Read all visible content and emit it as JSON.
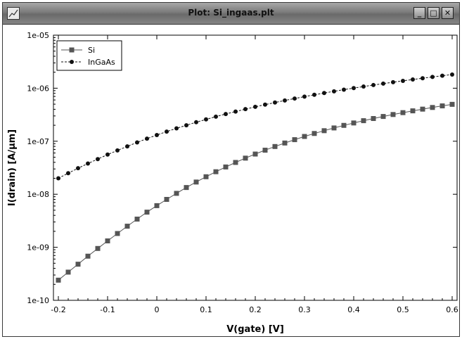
{
  "window": {
    "title": "Plot: Si_ingaas.plt",
    "buttons": {
      "minimize": "_",
      "maximize": "□",
      "close": "✕"
    },
    "icon": "plot-app-icon"
  },
  "chart_data": {
    "type": "line",
    "xlabel": "V(gate) [V]",
    "ylabel": "I(drain) [A/µm]",
    "yscale": "log",
    "xlim": [
      -0.21,
      0.61
    ],
    "ylim": [
      1e-10,
      1e-05
    ],
    "xticks": [
      -0.2,
      -0.1,
      0,
      0.1,
      0.2,
      0.3,
      0.4,
      0.5,
      0.6
    ],
    "xtick_labels": [
      "-0.2",
      "-0.1",
      "0",
      "0.1",
      "0.2",
      "0.3",
      "0.4",
      "0.5",
      "0.6"
    ],
    "yticks": [
      1e-10,
      1e-09,
      1e-08,
      1e-07,
      1e-06,
      1e-05
    ],
    "ytick_labels": [
      "1e-10",
      "1e-09",
      "1e-08",
      "1e-07",
      "1e-06",
      "1e-05"
    ],
    "grid": false,
    "legend_position": "top-left",
    "x": [
      -0.2,
      -0.18,
      -0.16,
      -0.14,
      -0.12,
      -0.1,
      -0.08,
      -0.06,
      -0.04,
      -0.02,
      0,
      0.02,
      0.04,
      0.06,
      0.08,
      0.1,
      0.12,
      0.14,
      0.16,
      0.18,
      0.2,
      0.22,
      0.24,
      0.26,
      0.28,
      0.3,
      0.32,
      0.34,
      0.36,
      0.38,
      0.4,
      0.42,
      0.44,
      0.46,
      0.48,
      0.5,
      0.52,
      0.54,
      0.56,
      0.58,
      0.6
    ],
    "series": [
      {
        "name": "Si",
        "color": "#555555",
        "marker": "square",
        "line": "solid",
        "values": [
          2.4e-10,
          3.4e-10,
          4.8e-10,
          6.8e-10,
          9.5e-10,
          1.32e-09,
          1.82e-09,
          2.5e-09,
          3.4e-09,
          4.6e-09,
          6.1e-09,
          8e-09,
          1.04e-08,
          1.34e-08,
          1.7e-08,
          2.14e-08,
          2.66e-08,
          3.27e-08,
          3.98e-08,
          4.8e-08,
          5.73e-08,
          6.78e-08,
          7.95e-08,
          9.25e-08,
          1.07e-07,
          1.23e-07,
          1.4e-07,
          1.58e-07,
          1.78e-07,
          1.99e-07,
          2.21e-07,
          2.44e-07,
          2.68e-07,
          2.93e-07,
          3.19e-07,
          3.46e-07,
          3.74e-07,
          4.03e-07,
          4.33e-07,
          4.64e-07,
          4.96e-07
        ]
      },
      {
        "name": "InGaAs",
        "color": "#111111",
        "marker": "circle",
        "line": "dashed",
        "values": [
          2e-08,
          2.5e-08,
          3.1e-08,
          3.8e-08,
          4.6e-08,
          5.6e-08,
          6.7e-08,
          8e-08,
          9.5e-08,
          1.12e-07,
          1.31e-07,
          1.52e-07,
          1.75e-07,
          2e-07,
          2.28e-07,
          2.58e-07,
          2.91e-07,
          3.26e-07,
          3.63e-07,
          4.03e-07,
          4.45e-07,
          4.9e-07,
          5.37e-07,
          5.87e-07,
          6.39e-07,
          6.94e-07,
          7.51e-07,
          8.11e-07,
          8.73e-07,
          9.38e-07,
          1.005e-06,
          1.074e-06,
          1.146e-06,
          1.22e-06,
          1.297e-06,
          1.376e-06,
          1.458e-06,
          1.542e-06,
          1.629e-06,
          1.718e-06,
          1.81e-06
        ]
      }
    ]
  }
}
